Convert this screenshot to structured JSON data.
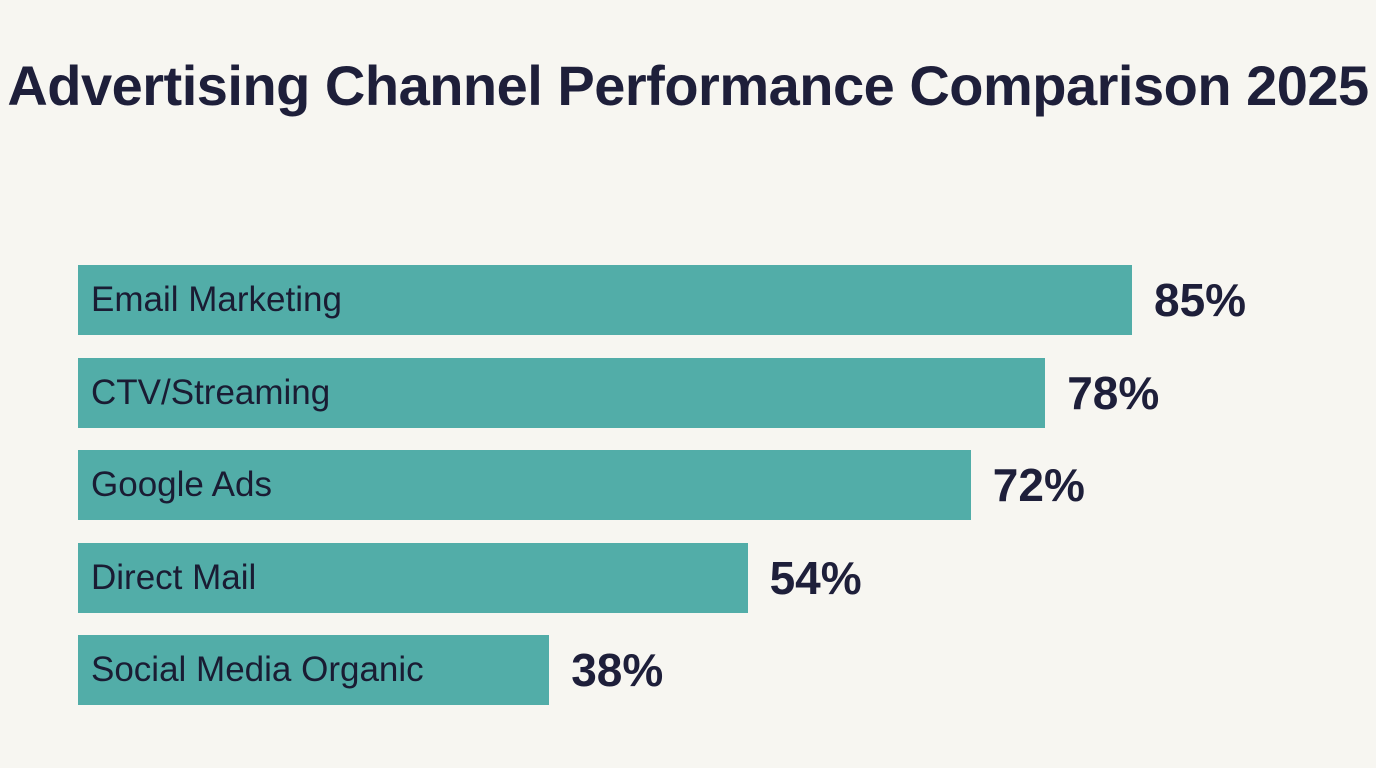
{
  "chart_data": {
    "type": "bar",
    "orientation": "horizontal",
    "title": "Advertising Channel Performance Comparison 2025",
    "categories": [
      "Email Marketing",
      "CTV/Streaming",
      "Google Ads",
      "Direct Mail",
      "Social Media Organic"
    ],
    "values": [
      85,
      78,
      72,
      54,
      38
    ],
    "value_labels": [
      "85%",
      "78%",
      "72%",
      "54%",
      "38%"
    ],
    "unit": "%",
    "xlim": [
      0,
      100
    ],
    "grid": false,
    "legend": "none",
    "colors": {
      "bar": "#52ada8",
      "background": "#f7f6f1",
      "text": "#1e1f3a"
    }
  }
}
